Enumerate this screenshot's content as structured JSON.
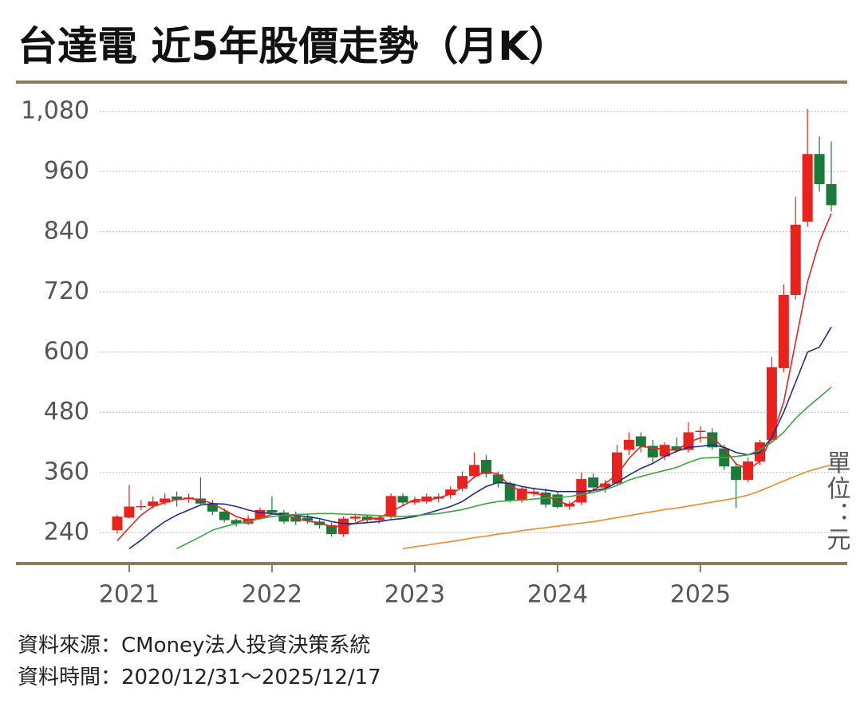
{
  "chart_data": {
    "type": "candlestick",
    "title": "台達電 近5年股價走勢（月K）",
    "unit_label": "單位：元",
    "notes": [
      "資料來源：CMoney法人投資決策系統",
      "資料時間：2020/12/31～2025/12/17"
    ],
    "categories": [
      null,
      "2021",
      null,
      null,
      null,
      null,
      null,
      null,
      null,
      null,
      null,
      null,
      null,
      "2022",
      null,
      null,
      null,
      null,
      null,
      null,
      null,
      null,
      null,
      null,
      null,
      "2023",
      null,
      null,
      null,
      null,
      null,
      null,
      null,
      null,
      null,
      null,
      null,
      "2024",
      null,
      null,
      null,
      null,
      null,
      null,
      null,
      null,
      null,
      null,
      null,
      "2025",
      null,
      null,
      null,
      null,
      null,
      null,
      null,
      null,
      null,
      null,
      null
    ],
    "open": [
      245,
      270,
      292,
      293,
      300,
      312,
      308,
      308,
      298,
      282,
      265,
      258,
      268,
      285,
      280,
      272,
      270,
      262,
      255,
      237,
      268,
      272,
      265,
      272,
      313,
      300,
      302,
      308,
      315,
      328,
      353,
      385,
      356,
      338,
      305,
      318,
      320,
      316,
      292,
      300,
      350,
      330,
      338,
      405,
      432,
      413,
      392,
      412,
      405,
      442,
      440,
      408,
      372,
      345,
      382,
      425,
      568,
      714,
      860,
      995,
      935
    ],
    "high": [
      275,
      335,
      305,
      312,
      318,
      322,
      318,
      350,
      305,
      288,
      268,
      275,
      290,
      312,
      285,
      282,
      278,
      268,
      260,
      272,
      278,
      276,
      275,
      318,
      318,
      312,
      318,
      318,
      332,
      362,
      400,
      395,
      362,
      342,
      332,
      330,
      328,
      322,
      302,
      360,
      358,
      345,
      415,
      440,
      440,
      425,
      420,
      430,
      460,
      452,
      448,
      415,
      380,
      390,
      425,
      590,
      735,
      910,
      1085,
      1030,
      1020
    ],
    "low": [
      238,
      268,
      285,
      288,
      295,
      292,
      300,
      296,
      275,
      260,
      252,
      255,
      265,
      276,
      258,
      255,
      258,
      248,
      232,
      232,
      262,
      260,
      258,
      268,
      295,
      295,
      298,
      300,
      308,
      322,
      348,
      350,
      330,
      300,
      300,
      312,
      290,
      288,
      285,
      295,
      322,
      320,
      335,
      395,
      400,
      380,
      385,
      400,
      400,
      420,
      405,
      365,
      289,
      340,
      375,
      420,
      560,
      705,
      850,
      920,
      880
    ],
    "close": [
      272,
      292,
      293,
      302,
      308,
      306,
      310,
      298,
      282,
      265,
      258,
      268,
      285,
      280,
      262,
      262,
      264,
      255,
      237,
      268,
      272,
      265,
      270,
      313,
      300,
      304,
      312,
      312,
      326,
      353,
      375,
      357,
      338,
      304,
      328,
      322,
      296,
      291,
      298,
      347,
      330,
      338,
      400,
      425,
      412,
      390,
      415,
      405,
      440,
      443,
      410,
      372,
      345,
      382,
      420,
      570,
      714,
      854,
      995,
      935,
      893
    ],
    "up_color": "#e8231e",
    "down_color": "#1a7a3a",
    "series": [
      {
        "color": "#e8231e",
        "values": [
          224,
          250,
          275,
          292,
          300,
          306,
          308,
          306,
          298,
          285,
          272,
          265,
          268,
          277,
          276,
          268,
          263,
          260,
          252,
          253,
          259,
          268,
          269,
          282,
          294,
          306,
          305,
          309,
          317,
          330,
          351,
          362,
          357,
          333,
          323,
          318,
          315,
          303,
          295,
          312,
          325,
          338,
          356,
          388,
          412,
          409,
          406,
          404,
          420,
          429,
          430,
          408,
          377,
          366,
          382,
          430,
          500,
          620,
          740,
          820,
          876
        ]
      },
      {
        "color": "#1f2d8a",
        "values": [
          null,
          208,
          225,
          245,
          262,
          275,
          285,
          295,
          298,
          297,
          292,
          285,
          280,
          278,
          276,
          274,
          272,
          268,
          262,
          258,
          258,
          260,
          262,
          266,
          268,
          272,
          278,
          285,
          292,
          302,
          318,
          332,
          340,
          338,
          332,
          328,
          325,
          322,
          322,
          322,
          324,
          328,
          340,
          355,
          368,
          378,
          392,
          402,
          410,
          412,
          415,
          410,
          400,
          395,
          400,
          430,
          480,
          540,
          600,
          610,
          650
        ]
      },
      {
        "color": "#3aa83a",
        "values": [
          null,
          null,
          null,
          null,
          null,
          208,
          220,
          232,
          245,
          252,
          258,
          262,
          268,
          272,
          275,
          276,
          277,
          278,
          278,
          277,
          276,
          275,
          274,
          272,
          272,
          274,
          276,
          278,
          282,
          286,
          292,
          298,
          302,
          304,
          305,
          307,
          309,
          310,
          312,
          316,
          320,
          326,
          334,
          345,
          352,
          358,
          364,
          370,
          380,
          388,
          390,
          390,
          392,
          395,
          405,
          420,
          440,
          468,
          490,
          510,
          530
        ]
      },
      {
        "color": "#f08a24",
        "values": [
          null,
          null,
          null,
          null,
          null,
          null,
          null,
          null,
          null,
          null,
          null,
          null,
          null,
          null,
          null,
          null,
          null,
          null,
          null,
          null,
          null,
          null,
          null,
          null,
          208,
          212,
          215,
          219,
          222,
          226,
          230,
          233,
          237,
          240,
          244,
          247,
          250,
          253,
          256,
          259,
          262,
          266,
          270,
          274,
          278,
          282,
          286,
          289,
          293,
          297,
          301,
          305,
          309,
          315,
          323,
          333,
          343,
          353,
          362,
          369,
          375
        ]
      }
    ],
    "ylim": [
      180,
      1140
    ],
    "yticks": [
      240,
      360,
      480,
      600,
      720,
      840,
      960,
      {
        "value": 1080,
        "label": "1,080"
      }
    ],
    "grid": true,
    "axis_color": "#8b7d5b"
  }
}
